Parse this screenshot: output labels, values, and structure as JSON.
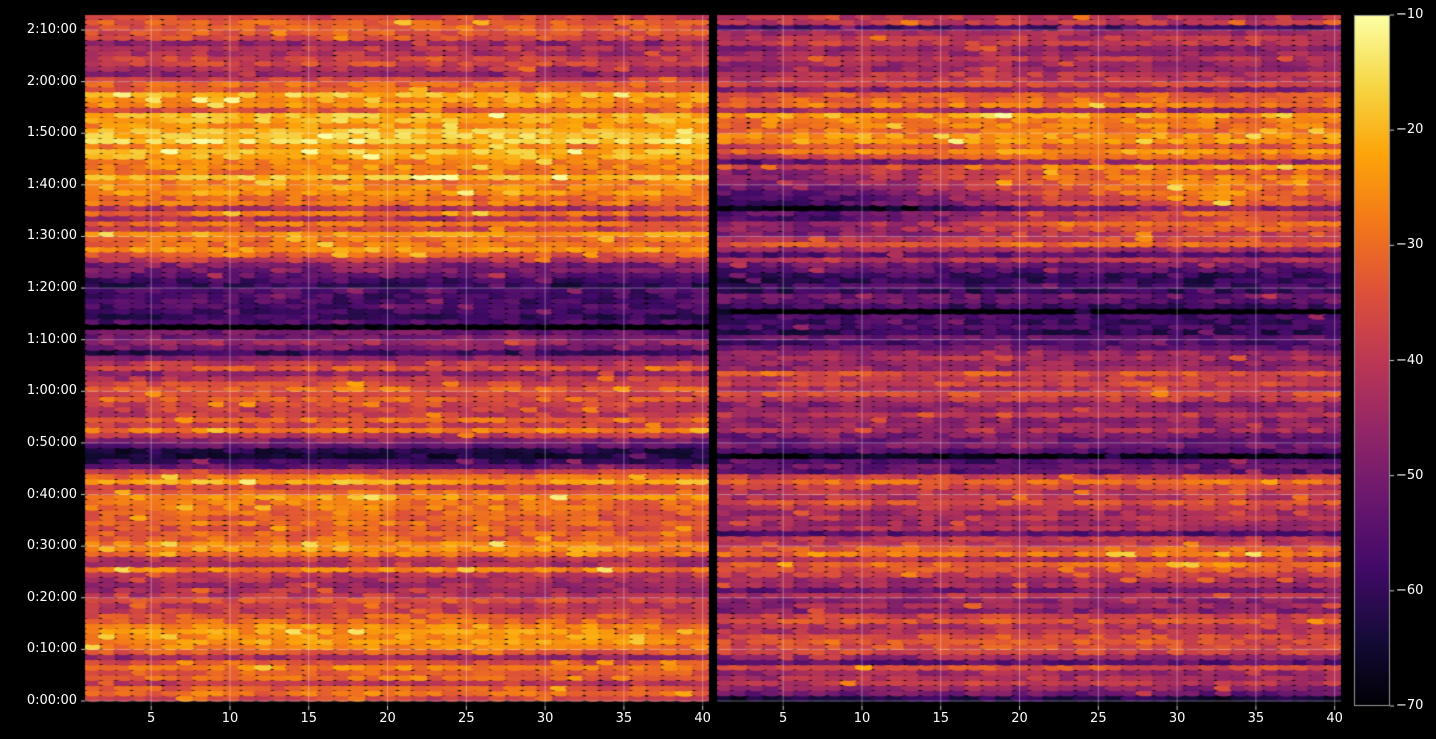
{
  "figure": {
    "background": "#000000",
    "text_color": "#ffffff",
    "gridline_color": "#ffffff"
  },
  "chart_data": {
    "type": "heatmap",
    "subtype": "dual-panel time-frequency heatmap of overlapping ellipse markers (spectrogram-like), inferno colormap, values in dB",
    "colormap": "inferno",
    "x_axis": {
      "tick_labels": [
        "5",
        "10",
        "15",
        "20",
        "25",
        "30",
        "35",
        "40"
      ],
      "tick_values": [
        5,
        10,
        15,
        20,
        25,
        30,
        35,
        40
      ],
      "data_range": [
        0.8,
        40.4
      ],
      "columns_per_panel": 40
    },
    "y_axis": {
      "tick_labels": [
        "0:00:00",
        "0:10:00",
        "0:20:00",
        "0:30:00",
        "0:40:00",
        "0:50:00",
        "1:00:00",
        "1:10:00",
        "1:20:00",
        "1:30:00",
        "1:40:00",
        "1:50:00",
        "2:00:00",
        "2:10:00"
      ],
      "tick_minutes": [
        0,
        10,
        20,
        30,
        40,
        50,
        60,
        70,
        80,
        90,
        100,
        110,
        120,
        130
      ],
      "total_minutes": 133
    },
    "colorbar": {
      "tick_labels": [
        "−10",
        "−20",
        "−30",
        "−40",
        "−50",
        "−60",
        "−70"
      ],
      "tick_values": [
        -10,
        -20,
        -30,
        -40,
        -50,
        -60,
        -70
      ],
      "vmin": -70,
      "vmax": -10
    },
    "panels": [
      {
        "name": "left",
        "band_minutes": 5,
        "row_order": "bottom_to_top",
        "grid": [
          [
            -34,
            -32,
            -33,
            -31,
            -33,
            -32,
            -34,
            -33
          ],
          [
            -31,
            -29,
            -30,
            -28,
            -30,
            -29,
            -31,
            -30
          ],
          [
            -29,
            -27,
            -26,
            -29,
            -27,
            -25,
            -28,
            -30
          ],
          [
            -34,
            -32,
            -33,
            -31,
            -32,
            -34,
            -33,
            -35
          ],
          [
            -41,
            -39,
            -37,
            -40,
            -38,
            -39,
            -41,
            -40
          ],
          [
            -26,
            -24,
            -25,
            -23,
            -26,
            -25,
            -24,
            -27
          ],
          [
            -31,
            -29,
            -30,
            -28,
            -29,
            -31,
            -30,
            -32
          ],
          [
            -29,
            -27,
            -28,
            -26,
            -28,
            -27,
            -29,
            -30
          ],
          [
            -26,
            -24,
            -25,
            -23,
            -24,
            -26,
            -25,
            -24
          ],
          [
            -64,
            -62,
            -63,
            -61,
            -63,
            -64,
            -62,
            -63
          ],
          [
            -33,
            -31,
            -32,
            -30,
            -32,
            -31,
            -33,
            -32
          ],
          [
            -37,
            -35,
            -36,
            -34,
            -35,
            -37,
            -36,
            -38
          ],
          [
            -30,
            -28,
            -29,
            -27,
            -29,
            -28,
            -30,
            -29
          ],
          [
            -46,
            -44,
            -45,
            -43,
            -45,
            -44,
            -46,
            -45
          ],
          [
            -55,
            -53,
            -54,
            -52,
            -54,
            -53,
            -55,
            -56
          ],
          [
            -55,
            -54,
            -53,
            -55,
            -54,
            -56,
            -55,
            -54
          ],
          [
            -58,
            -56,
            -57,
            -55,
            -57,
            -56,
            -58,
            -57
          ],
          [
            -23,
            -21,
            -22,
            -20,
            -22,
            -21,
            -23,
            -22
          ],
          [
            -29,
            -27,
            -28,
            -26,
            -28,
            -27,
            -29,
            -28
          ],
          [
            -26,
            -24,
            -25,
            -23,
            -25,
            -24,
            -26,
            -25
          ],
          [
            -24,
            -22,
            -23,
            -21,
            -23,
            -22,
            -24,
            -23
          ],
          [
            -21,
            -19,
            -20,
            -18,
            -20,
            -19,
            -21,
            -20
          ],
          [
            -23,
            -21,
            -22,
            -20,
            -22,
            -21,
            -23,
            -22
          ],
          [
            -25,
            -23,
            -24,
            -22,
            -24,
            -23,
            -25,
            -24
          ],
          [
            -41,
            -39,
            -40,
            -38,
            -40,
            -39,
            -41,
            -40
          ],
          [
            -38,
            -36,
            -37,
            -35,
            -37,
            -36,
            -38,
            -37
          ],
          [
            -35,
            -33,
            -34,
            -32,
            -34,
            -33,
            -35,
            -34
          ]
        ]
      },
      {
        "name": "right",
        "band_minutes": 5,
        "row_order": "bottom_to_top",
        "grid": [
          [
            -46,
            -44,
            -45,
            -43,
            -45,
            -44,
            -46,
            -45
          ],
          [
            -39,
            -37,
            -38,
            -36,
            -38,
            -37,
            -39,
            -38
          ],
          [
            -36,
            -34,
            -35,
            -33,
            -35,
            -34,
            -36,
            -35
          ],
          [
            -43,
            -41,
            -42,
            -40,
            -42,
            -41,
            -43,
            -42
          ],
          [
            -49,
            -47,
            -48,
            -46,
            -48,
            -47,
            -49,
            -48
          ],
          [
            -33,
            -31,
            -29,
            -32,
            -30,
            -28,
            -24,
            -30
          ],
          [
            -39,
            -37,
            -38,
            -36,
            -38,
            -37,
            -39,
            -38
          ],
          [
            -41,
            -39,
            -40,
            -38,
            -40,
            -39,
            -37,
            -40
          ],
          [
            -34,
            -32,
            -33,
            -31,
            -33,
            -32,
            -30,
            -33
          ],
          [
            -64,
            -63,
            -62,
            -64,
            -63,
            -62,
            -64,
            -63
          ],
          [
            -42,
            -40,
            -41,
            -39,
            -41,
            -40,
            -42,
            -41
          ],
          [
            -45,
            -43,
            -44,
            -42,
            -44,
            -41,
            -43,
            -42
          ],
          [
            -36,
            -34,
            -35,
            -33,
            -34,
            -33,
            -35,
            -34
          ],
          [
            -51,
            -49,
            -50,
            -48,
            -50,
            -49,
            -51,
            -50
          ],
          [
            -58,
            -56,
            -57,
            -55,
            -57,
            -56,
            -58,
            -57
          ],
          [
            -57,
            -56,
            -55,
            -57,
            -56,
            -58,
            -57,
            -56
          ],
          [
            -58,
            -56,
            -55,
            -57,
            -56,
            -55,
            -57,
            -56
          ],
          [
            -34,
            -32,
            -33,
            -31,
            -33,
            -32,
            -34,
            -33
          ],
          [
            -50,
            -52,
            -46,
            -40,
            -36,
            -33,
            -31,
            -33
          ],
          [
            -55,
            -54,
            -48,
            -40,
            -34,
            -30,
            -23,
            -32
          ],
          [
            -47,
            -44,
            -40,
            -35,
            -31,
            -29,
            -28,
            -30
          ],
          [
            -32,
            -25,
            -29,
            -27,
            -26,
            -27,
            -28,
            -28
          ],
          [
            -28,
            -25,
            -28,
            -27,
            -27,
            -26,
            -28,
            -27
          ],
          [
            -31,
            -29,
            -30,
            -28,
            -29,
            -28,
            -30,
            -29
          ],
          [
            -46,
            -44,
            -45,
            -43,
            -45,
            -44,
            -46,
            -45
          ],
          [
            -43,
            -41,
            -42,
            -40,
            -42,
            -41,
            -43,
            -42
          ],
          [
            -39,
            -37,
            -38,
            -36,
            -38,
            -37,
            -39,
            -38
          ]
        ]
      }
    ]
  }
}
